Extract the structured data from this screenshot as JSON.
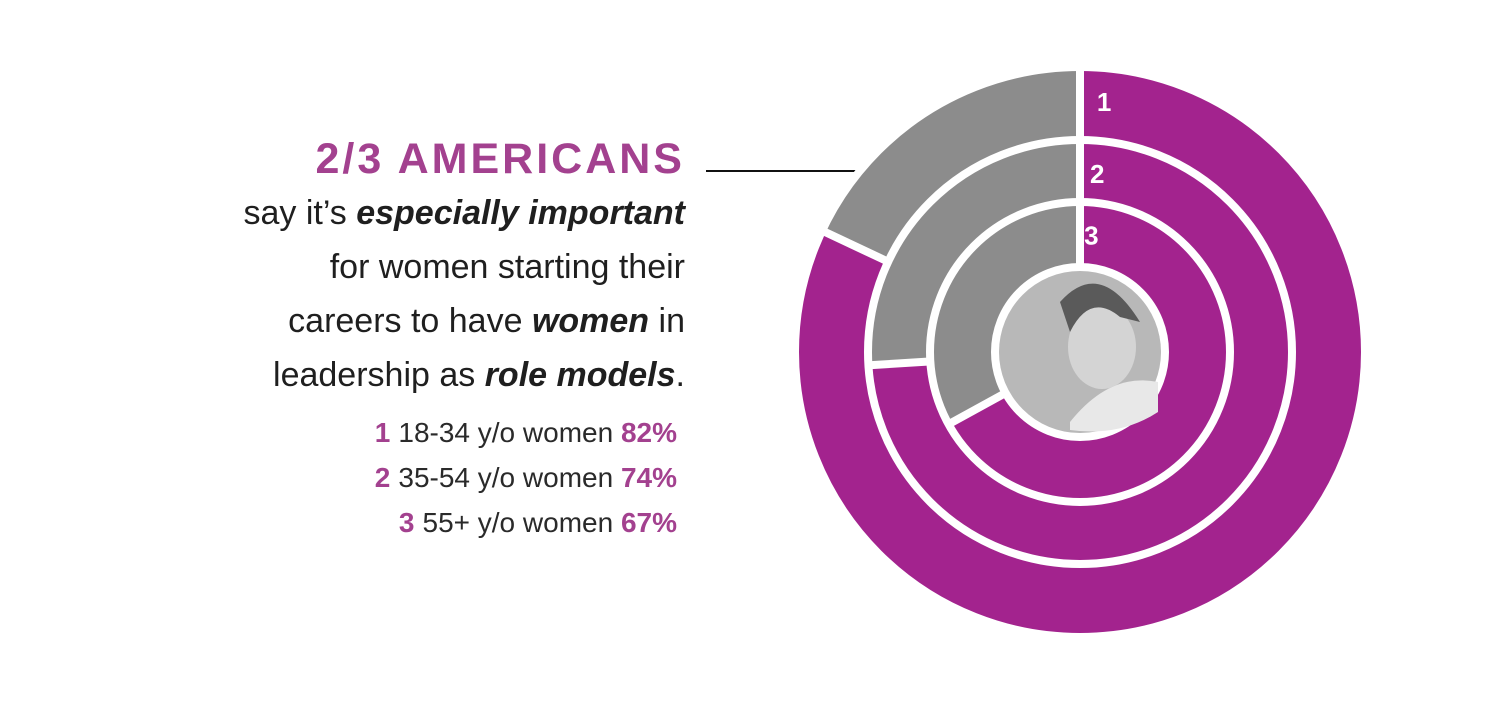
{
  "headline": {
    "title": "2/3 AMERICANS",
    "line1_pre": "say it’s ",
    "line1_em": "especially important",
    "line2": "for women starting their",
    "line3_pre": "careers to have ",
    "line3_em": "women",
    "line3_post": " in",
    "line4_pre": "leadership as ",
    "line4_em": "role models",
    "line4_post": "."
  },
  "legend": [
    {
      "num": "1",
      "label": "18-34 y/o women",
      "pct": "82%"
    },
    {
      "num": "2",
      "label": "35-54 y/o women",
      "pct": "74%"
    },
    {
      "num": "3",
      "label": "55+ y/o women",
      "pct": "67%"
    }
  ],
  "colors": {
    "accent": "#a3418f",
    "ring_fill": "#a3238e",
    "ring_rest": "#8c8c8c",
    "inner_photo": "#b8b8b8",
    "pink": "#e5509a"
  },
  "chart_data": {
    "type": "pie",
    "rings": [
      {
        "label": "1",
        "name": "18-34 y/o women",
        "value": 82
      },
      {
        "label": "2",
        "name": "35-54 y/o women",
        "value": 74
      },
      {
        "label": "3",
        "name": "55+ y/o women",
        "value": 67
      }
    ],
    "max": 100
  }
}
